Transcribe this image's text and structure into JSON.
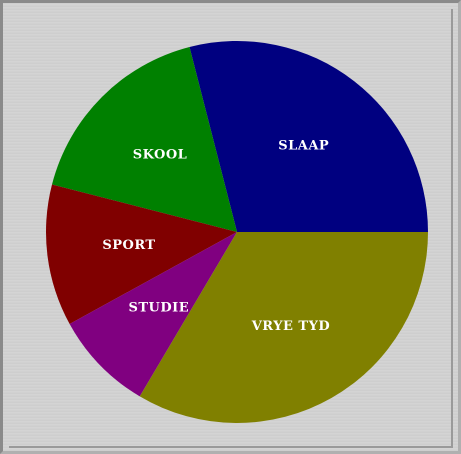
{
  "chart_data": {
    "type": "pie",
    "categories": [
      "SLAAP",
      "SKOOL",
      "SPORT",
      "STUDIE",
      "VRYE TYD"
    ],
    "values": [
      29,
      17,
      12,
      8.5,
      33.5
    ],
    "colors": [
      "#000080",
      "#008000",
      "#800000",
      "#800080",
      "#808000"
    ]
  }
}
